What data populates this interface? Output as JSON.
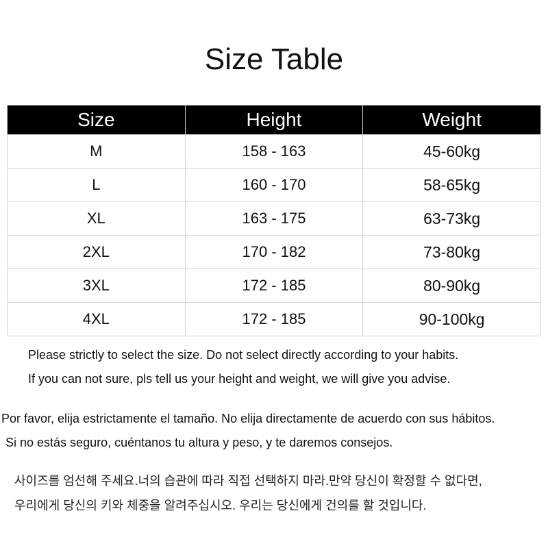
{
  "title": "Size Table",
  "table": {
    "headers": [
      "Size",
      "Height",
      "Weight"
    ],
    "rows": [
      [
        "M",
        "158 - 163",
        "45-60kg"
      ],
      [
        "L",
        "160 - 170",
        "58-65kg"
      ],
      [
        "XL",
        "163 - 175",
        "63-73kg"
      ],
      [
        "2XL",
        "170 - 182",
        "73-80kg"
      ],
      [
        "3XL",
        "172 - 185",
        "80-90kg"
      ],
      [
        "4XL",
        "172 - 185",
        "90-100kg"
      ]
    ]
  },
  "notes": {
    "en": [
      "Please strictly to select the size. Do not select directly according to your habits.",
      "If you can not sure, pls tell us your height and weight, we will give you advise."
    ],
    "es": [
      "Por favor, elija estrictamente el tamaño. No elija directamente de acuerdo con sus hábitos.",
      "Si no estás seguro, cuéntanos tu altura y peso, y te daremos consejos."
    ],
    "ko": [
      "사이즈를 엄선해 주세요.너의 습관에 따라 직접 선택하지 마라.만약 당신이 확정할 수 없다면,",
      "우리에게 당신의 키와 체중을 알려주십시오. 우리는 당신에게 건의를 할 것입니다."
    ]
  }
}
